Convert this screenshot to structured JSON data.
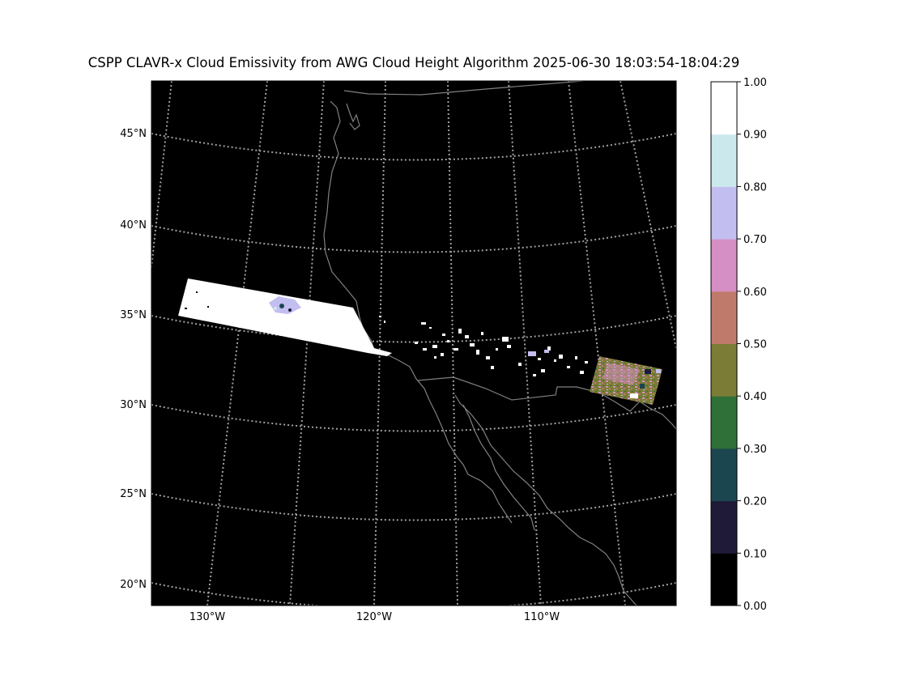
{
  "map": {
    "title": "CSPP CLAVR-x Cloud Emissivity from AWG Cloud Height Algorithm 2025-06-30 18:03:54-18:04:29",
    "latitude_labels": [
      "45°N",
      "40°N",
      "35°N",
      "30°N",
      "25°N",
      "20°N"
    ],
    "longitude_labels": [
      "130°W",
      "120°W",
      "110°W"
    ],
    "background_color": "#000000",
    "coastline_color": "#808080",
    "graticule_color": "#a0a0a0"
  },
  "colorbar": {
    "tick_labels": [
      "0.00",
      "0.10",
      "0.20",
      "0.30",
      "0.40",
      "0.50",
      "0.60",
      "0.70",
      "0.80",
      "0.90",
      "1.00"
    ],
    "colors": [
      "#000000",
      "#1e1a38",
      "#1b4650",
      "#2e7038",
      "#7b7c36",
      "#c07a6c",
      "#d58fc4",
      "#c3bef0",
      "#cbe8ec",
      "#ffffff"
    ]
  }
}
